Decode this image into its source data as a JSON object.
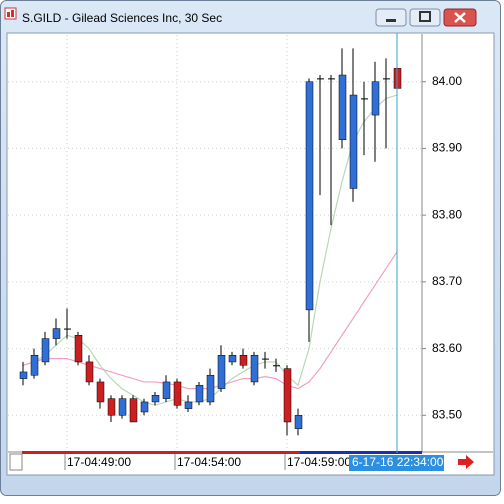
{
  "window_title": "S.GILD - Gilead Sciences Inc, 30 Sec",
  "chart_data": {
    "type": "candlestick",
    "categories": [
      null,
      null,
      null,
      null,
      "17-04:49:00",
      null,
      null,
      null,
      null,
      null,
      null,
      null,
      null,
      null,
      "17-04:54:00",
      null,
      null,
      null,
      null,
      null,
      null,
      null,
      null,
      null,
      "17-04:59:00",
      null,
      null,
      null,
      null,
      null,
      null,
      null,
      null,
      null,
      null
    ],
    "open": [
      83.555,
      83.56,
      83.58,
      83.615,
      83.63,
      83.62,
      83.58,
      83.55,
      83.525,
      83.5,
      83.525,
      83.505,
      83.52,
      83.525,
      83.55,
      83.51,
      83.52,
      83.52,
      83.54,
      83.58,
      83.59,
      83.55,
      83.585,
      83.575,
      83.57,
      83.48,
      83.658,
      84.005,
      84.005,
      83.913,
      83.84,
      83.975,
      83.95,
      84.005,
      84.02
    ],
    "high": [
      83.58,
      83.6,
      83.625,
      83.645,
      83.66,
      83.625,
      83.59,
      83.555,
      83.53,
      83.53,
      83.53,
      83.525,
      83.535,
      83.56,
      83.555,
      83.53,
      83.55,
      83.57,
      83.605,
      83.595,
      83.6,
      83.595,
      83.595,
      83.585,
      83.575,
      83.51,
      84.005,
      84.01,
      84.01,
      84.05,
      84.05,
      84.0,
      84.03,
      84.035,
      84.025
    ],
    "low": [
      83.545,
      83.555,
      83.575,
      83.605,
      83.615,
      83.575,
      83.545,
      83.51,
      83.49,
      83.495,
      83.49,
      83.5,
      83.515,
      83.52,
      83.51,
      83.505,
      83.515,
      83.515,
      83.535,
      83.575,
      83.57,
      83.545,
      83.57,
      83.565,
      83.47,
      83.47,
      83.61,
      83.83,
      83.785,
      83.9,
      83.82,
      83.89,
      83.88,
      83.9,
      83.925
    ],
    "close": [
      83.565,
      83.59,
      83.615,
      83.63,
      83.63,
      83.58,
      83.55,
      83.52,
      83.5,
      83.525,
      83.49,
      83.52,
      83.53,
      83.55,
      83.515,
      83.52,
      83.545,
      83.56,
      83.59,
      83.59,
      83.575,
      83.59,
      83.585,
      83.575,
      83.49,
      83.5,
      84.0,
      84.005,
      84.005,
      84.01,
      83.98,
      83.975,
      84.0,
      84.005,
      83.99
    ],
    "up_color": "#2f6fd6",
    "down_color": "#cc1f1f",
    "doji_color": "#000000",
    "series": [
      {
        "color": "#b8d8b8",
        "values": [
          83.575,
          83.58,
          83.59,
          83.605,
          83.62,
          83.615,
          83.6,
          83.575,
          83.555,
          83.54,
          83.53,
          83.52,
          83.515,
          83.52,
          83.525,
          83.52,
          83.52,
          83.525,
          83.54,
          83.555,
          83.565,
          83.575,
          83.58,
          83.58,
          83.56,
          83.545,
          83.6,
          83.7,
          83.78,
          83.85,
          83.91,
          83.94,
          83.96,
          83.975,
          83.98
        ]
      },
      {
        "color": "#f0a0c8",
        "values": [
          83.575,
          83.58,
          83.585,
          83.585,
          83.585,
          83.58,
          83.575,
          83.57,
          83.565,
          83.56,
          83.555,
          83.55,
          83.55,
          83.548,
          83.545,
          83.54,
          83.54,
          83.54,
          83.545,
          83.55,
          83.555,
          83.555,
          83.558,
          83.555,
          83.545,
          83.54,
          83.55,
          83.57,
          83.595,
          83.62,
          83.645,
          83.67,
          83.695,
          83.72,
          83.745
        ]
      }
    ],
    "ylim": [
      83.448,
      84.07
    ],
    "yticks": [
      {
        "value": 83.5,
        "label": "83.50"
      },
      {
        "value": 83.6,
        "label": "83.60"
      },
      {
        "value": 83.7,
        "label": "83.70"
      },
      {
        "value": 83.8,
        "label": "83.80"
      },
      {
        "value": 83.9,
        "label": "83.90"
      },
      {
        "value": 84.0,
        "label": "84.00"
      }
    ],
    "grid": true,
    "crosshair_label": "6-17-16 22:34:00"
  }
}
